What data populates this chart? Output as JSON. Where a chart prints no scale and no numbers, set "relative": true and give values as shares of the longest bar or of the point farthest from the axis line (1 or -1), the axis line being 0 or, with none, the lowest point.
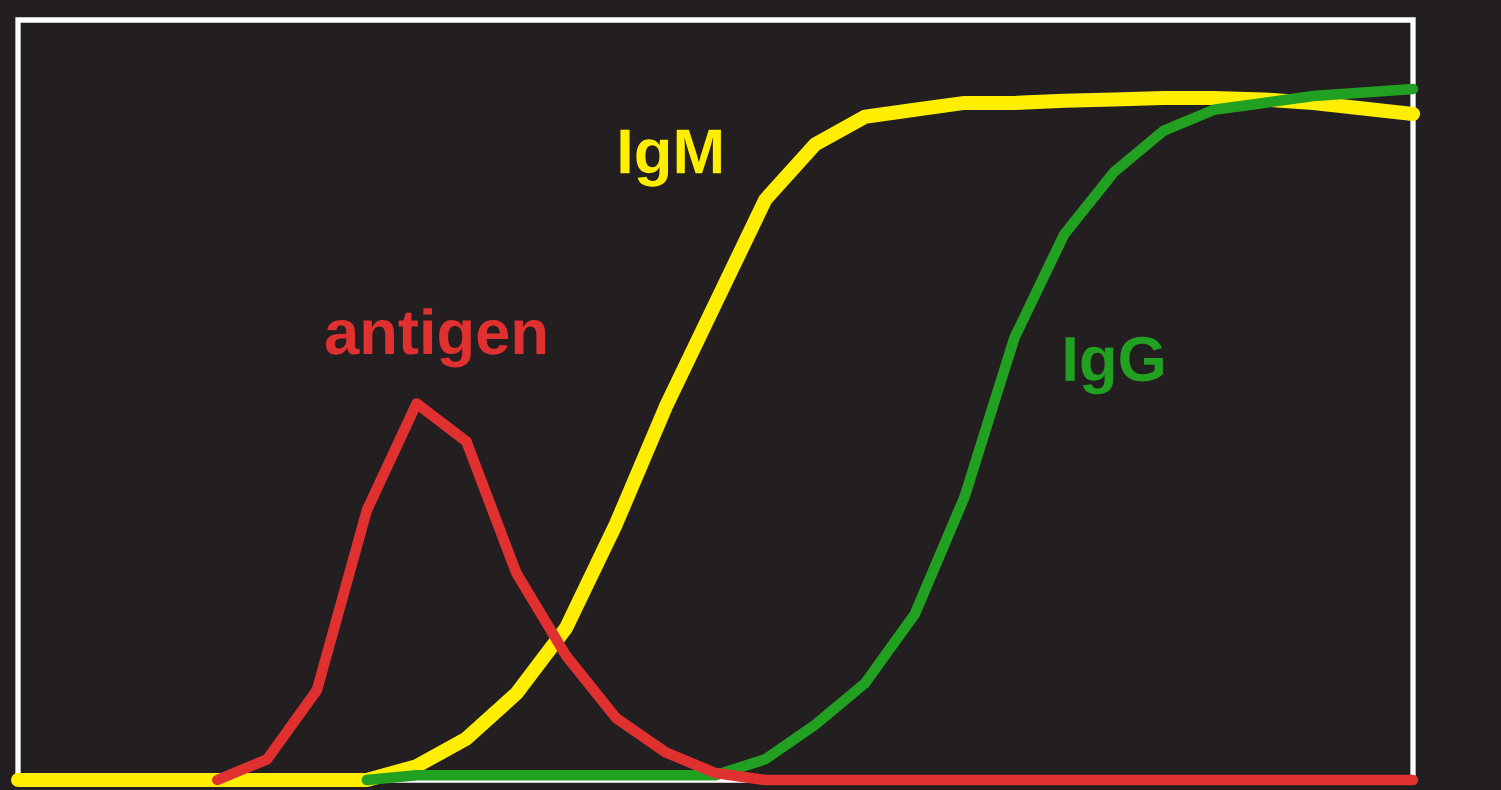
{
  "chart_data": {
    "type": "line",
    "relative": true,
    "legend": false,
    "marker": "none",
    "line_style": "solid",
    "categories": [
      null,
      null,
      null,
      null,
      null,
      null,
      null,
      null,
      null,
      null,
      null,
      null,
      null,
      null,
      null,
      null,
      null,
      null,
      null,
      null,
      null,
      null,
      null,
      null,
      null,
      null,
      null,
      null,
      null
    ],
    "series": [
      {
        "name": "antigen",
        "color": "#e03030",
        "values": [
          null,
          null,
          null,
          null,
          0,
          0.03,
          0.13,
          0.39,
          0.545,
          0.49,
          0.3,
          0.18,
          0.09,
          0.04,
          0.01,
          0,
          0,
          0,
          0,
          0,
          0,
          0,
          0,
          0,
          0,
          0,
          0,
          0,
          0
        ]
      },
      {
        "name": "IgM",
        "color": "#ffee00",
        "values": [
          0,
          0,
          0,
          0,
          0,
          0,
          0,
          0,
          0.02,
          0.06,
          0.125,
          0.22,
          0.37,
          0.54,
          0.69,
          0.84,
          0.92,
          0.96,
          0.97,
          0.98,
          0.98,
          0.983,
          0.985,
          0.987,
          0.987,
          0.985,
          0.98,
          0.972,
          0.964
        ]
      },
      {
        "name": "IgG",
        "color": "#22a022",
        "values": [
          null,
          null,
          null,
          null,
          null,
          null,
          null,
          0,
          0.007,
          0.007,
          0.007,
          0.007,
          0.007,
          0.007,
          0.007,
          0.03,
          0.08,
          0.14,
          0.24,
          0.41,
          0.64,
          0.79,
          0.88,
          0.94,
          0.97,
          0.98,
          0.99,
          0.995,
          1
        ]
      }
    ]
  }
}
